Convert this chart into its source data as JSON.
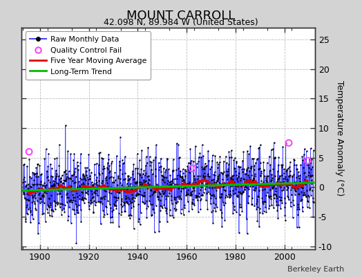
{
  "title": "MOUNT CARROLL",
  "subtitle": "42.098 N, 89.984 W (United States)",
  "ylabel": "Temperature Anomaly (°C)",
  "credit": "Berkeley Earth",
  "year_start": 1893,
  "year_end": 2011,
  "ylim": [
    -10.5,
    27
  ],
  "yticks": [
    -10,
    -5,
    0,
    5,
    10,
    15,
    20,
    25
  ],
  "fig_bg_color": "#d3d3d3",
  "plot_bg_color": "#ffffff",
  "raw_line_color": "#4444ff",
  "raw_marker_color": "#000000",
  "qc_fail_color": "#ff44ff",
  "moving_avg_color": "#dd0000",
  "trend_color": "#00bb00",
  "seed": 42
}
